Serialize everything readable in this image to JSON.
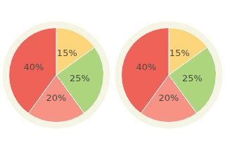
{
  "chart_data": [
    {
      "type": "pie",
      "values": [
        15,
        25,
        20,
        40
      ],
      "value_labels": [
        "15%",
        "25%",
        "20%",
        "40%"
      ],
      "colors": [
        "#fdd67b",
        "#add57d",
        "#f69384",
        "#ee6257"
      ],
      "data_labels": true
    },
    {
      "type": "pie",
      "values": [
        15,
        25,
        20,
        40
      ],
      "value_labels": [
        "15%",
        "25%",
        "20%",
        "40%"
      ],
      "colors": [
        "#fdd67b",
        "#add57d",
        "#f69384",
        "#ee6257"
      ],
      "data_labels": true
    }
  ]
}
